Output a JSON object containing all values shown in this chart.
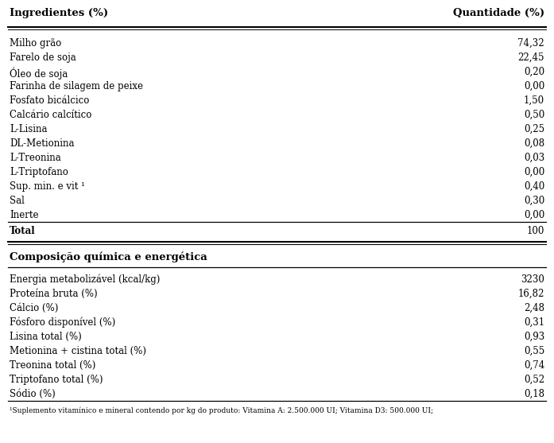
{
  "header_left": "Ingredientes (%)",
  "header_right": "Quantidade (%)",
  "ingredients": [
    [
      "Milho grão",
      "74,32"
    ],
    [
      "Farelo de soja",
      "22,45"
    ],
    [
      "Óleo de soja",
      "0,20"
    ],
    [
      "Farinha de silagem de peixe",
      "0,00"
    ],
    [
      "Fosfato bicálcico",
      "1,50"
    ],
    [
      "Calcário calcítico",
      "0,50"
    ],
    [
      "L-Lisina",
      "0,25"
    ],
    [
      "DL-Metionina",
      "0,08"
    ],
    [
      "L-Treonina",
      "0,03"
    ],
    [
      "L-Triptofano",
      "0,00"
    ],
    [
      "Sup. min. e vit ¹",
      "0,40"
    ],
    [
      "Sal",
      "0,30"
    ],
    [
      "Inerte",
      "0,00"
    ]
  ],
  "total_label": "Total",
  "total_value": "100",
  "section2_header": "Composição química e energética",
  "composition": [
    [
      "Energia metabolizável (kcal/kg)",
      "3230"
    ],
    [
      "Proteína bruta (%)",
      "16,82"
    ],
    [
      "Cálcio (%)",
      "2,48"
    ],
    [
      "Fósforo disponível (%)",
      "0,31"
    ],
    [
      "Lisina total (%)",
      "0,93"
    ],
    [
      "Metionina + cistina total (%)",
      "0,55"
    ],
    [
      "Treonina total (%)",
      "0,74"
    ],
    [
      "Triptofano total (%)",
      "0,52"
    ],
    [
      "Sódio (%)",
      "0,18"
    ]
  ],
  "footnote": "¹Suplemento vitamínico e mineral contendo por kg do produto: Vitamina A: 2.500.000 UI; Vitamina D3: 500.000 UI;",
  "bg_color": "#ffffff",
  "text_color": "#000000",
  "font_size": 8.5,
  "header_font_size": 9.5
}
